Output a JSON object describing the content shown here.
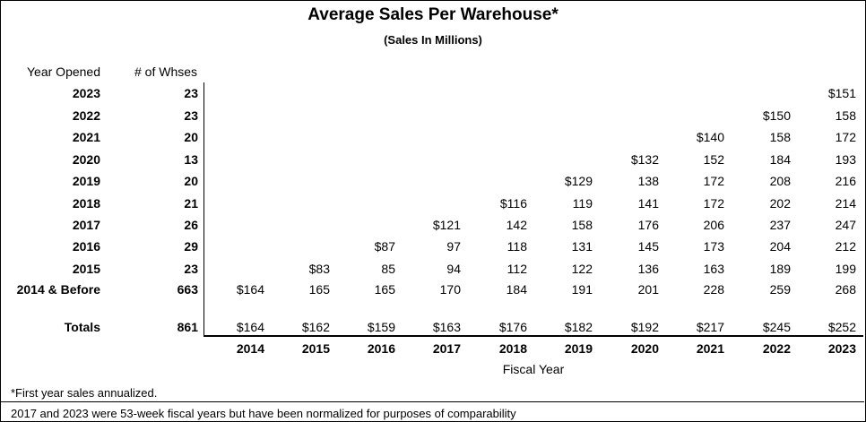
{
  "title": "Average Sales Per Warehouse*",
  "subtitle": "(Sales In Millions)",
  "headers": {
    "year_opened": "Year Opened",
    "num_whses": "# of Whses"
  },
  "fiscal_years": [
    "2014",
    "2015",
    "2016",
    "2017",
    "2018",
    "2019",
    "2020",
    "2021",
    "2022",
    "2023"
  ],
  "rows": [
    {
      "year": "2023",
      "whses": "23",
      "values": [
        "",
        "",
        "",
        "",
        "",
        "",
        "",
        "",
        "",
        "$151"
      ]
    },
    {
      "year": "2022",
      "whses": "23",
      "values": [
        "",
        "",
        "",
        "",
        "",
        "",
        "",
        "",
        "$150",
        "158"
      ]
    },
    {
      "year": "2021",
      "whses": "20",
      "values": [
        "",
        "",
        "",
        "",
        "",
        "",
        "",
        "$140",
        "158",
        "172"
      ]
    },
    {
      "year": "2020",
      "whses": "13",
      "values": [
        "",
        "",
        "",
        "",
        "",
        "",
        "$132",
        "152",
        "184",
        "193"
      ]
    },
    {
      "year": "2019",
      "whses": "20",
      "values": [
        "",
        "",
        "",
        "",
        "",
        "$129",
        "138",
        "172",
        "208",
        "216"
      ]
    },
    {
      "year": "2018",
      "whses": "21",
      "values": [
        "",
        "",
        "",
        "",
        "$116",
        "119",
        "141",
        "172",
        "202",
        "214"
      ]
    },
    {
      "year": "2017",
      "whses": "26",
      "values": [
        "",
        "",
        "",
        "$121",
        "142",
        "158",
        "176",
        "206",
        "237",
        "247"
      ]
    },
    {
      "year": "2016",
      "whses": "29",
      "values": [
        "",
        "",
        "$87",
        "97",
        "118",
        "131",
        "145",
        "173",
        "204",
        "212"
      ]
    },
    {
      "year": "2015",
      "whses": "23",
      "values": [
        "",
        "$83",
        "85",
        "94",
        "112",
        "122",
        "136",
        "163",
        "189",
        "199"
      ]
    },
    {
      "year": "2014 & Before",
      "whses": "663",
      "values": [
        "$164",
        "165",
        "165",
        "170",
        "184",
        "191",
        "201",
        "228",
        "259",
        "268"
      ]
    }
  ],
  "totals": {
    "label": "Totals",
    "whses": "861",
    "values": [
      "$164",
      "$162",
      "$159",
      "$163",
      "$176",
      "$182",
      "$192",
      "$217",
      "$245",
      "$252"
    ]
  },
  "x_axis_label": "Fiscal Year",
  "footnote": "*First year sales annualized.",
  "note": "2017 and 2023 were 53-week fiscal years but have been normalized for purposes of comparability"
}
